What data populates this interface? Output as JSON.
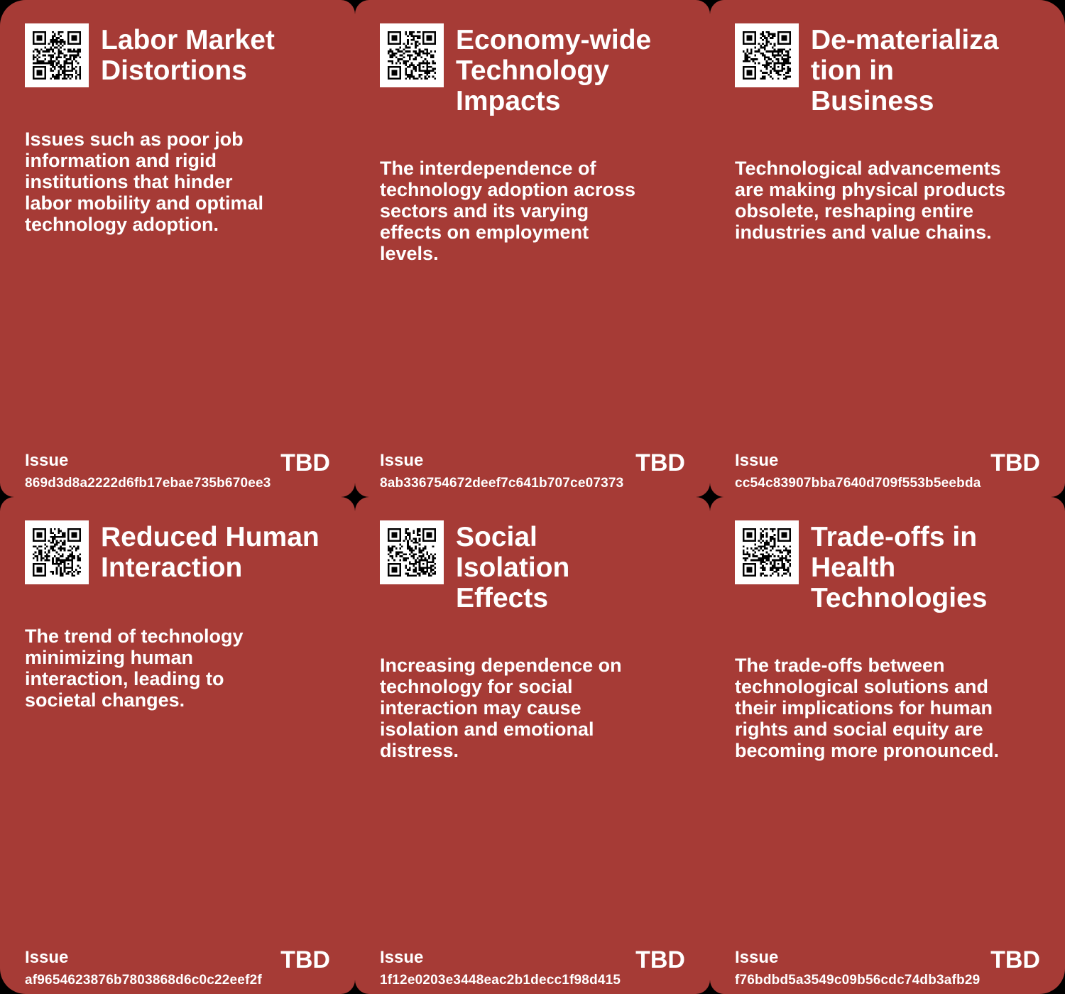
{
  "board": {
    "background_color": "#000000",
    "card_color": "#A63B36",
    "text_color": "#FFFFFF"
  },
  "cards": [
    {
      "title": "Labor Market\nDistortions",
      "description": "Issues such as poor job\ninformation and rigid\ninstitutions that hinder\nlabor mobility and optimal\ntechnology adoption.",
      "issue_label": "Issue",
      "issue_id": "869d3d8a2222d6fb17ebae735b670ee3",
      "status": "TBD"
    },
    {
      "title": "Economy-wide\nTechnology\nImpacts",
      "description": "The interdependence of\ntechnology adoption across\nsectors and its varying\neffects on employment\nlevels.",
      "issue_label": "Issue",
      "issue_id": "8ab336754672deef7c641b707ce07373",
      "status": "TBD"
    },
    {
      "title": "De-materializa\ntion in\nBusiness",
      "description": "Technological advancements\nare making physical products\nobsolete, reshaping entire\nindustries and value chains.",
      "issue_label": "Issue",
      "issue_id": "cc54c83907bba7640d709f553b5eebda",
      "status": "TBD"
    },
    {
      "title": "Reduced Human\nInteraction",
      "description": "The trend of technology\nminimizing human\ninteraction, leading to\nsocietal changes.",
      "issue_label": "Issue",
      "issue_id": "af9654623876b7803868d6c0c22eef2f",
      "status": "TBD"
    },
    {
      "title": "Social\nIsolation\nEffects",
      "description": "Increasing dependence on\ntechnology for social\ninteraction may cause\nisolation and emotional\ndistress.",
      "issue_label": "Issue",
      "issue_id": "1f12e0203e3448eac2b1decc1f98d415",
      "status": "TBD"
    },
    {
      "title": "Trade-offs in\nHealth\nTechnologies",
      "description": "The trade-offs between\ntechnological solutions and\ntheir implications for human\nrights and social equity are\nbecoming more pronounced.",
      "issue_label": "Issue",
      "issue_id": "f76bdbd5a3549c09b56cdc74db3afb29",
      "status": "TBD"
    }
  ]
}
